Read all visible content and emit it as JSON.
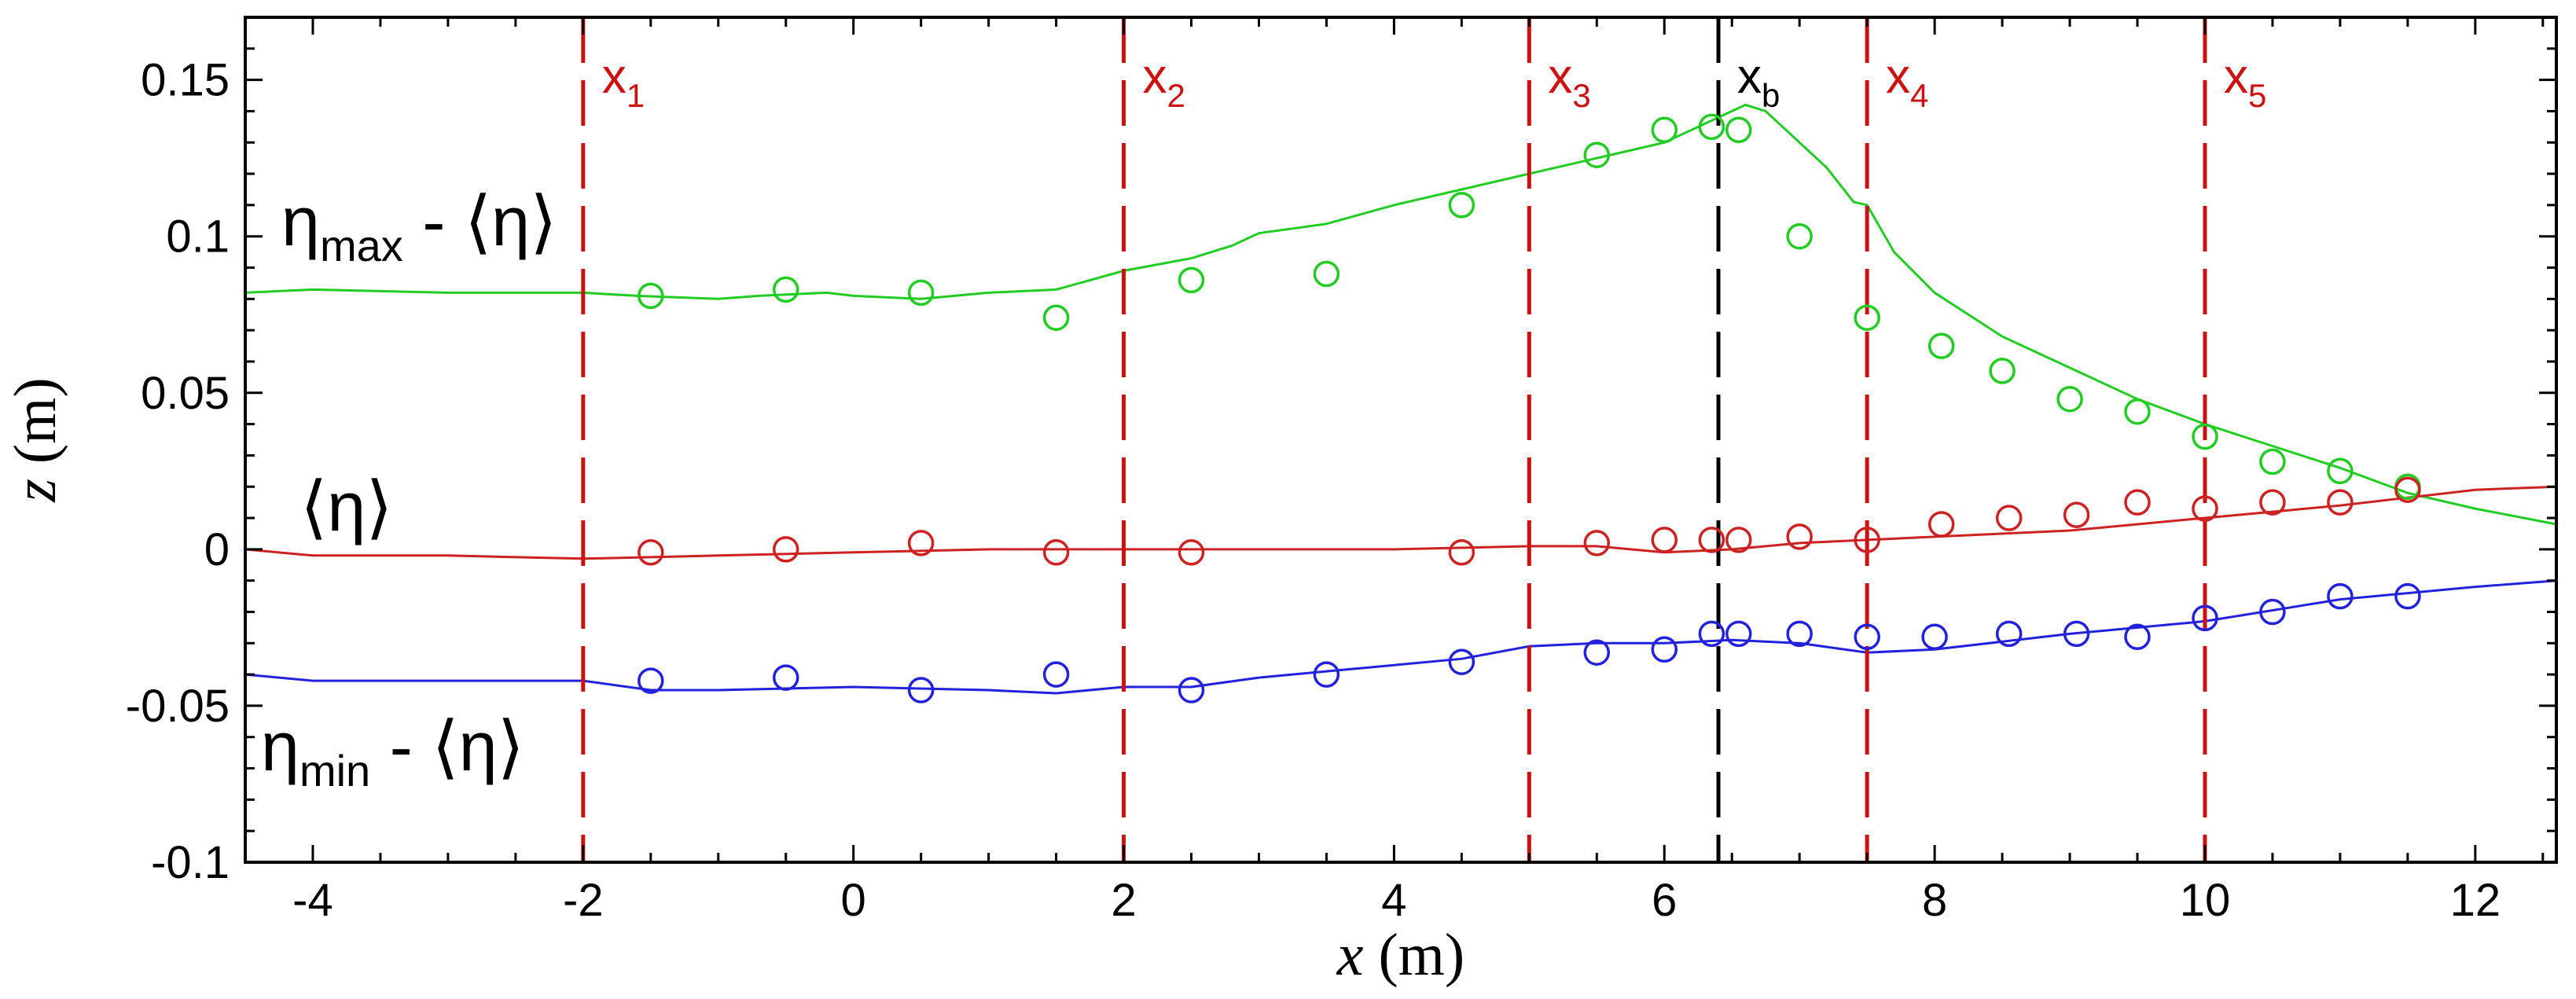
{
  "chart_data": {
    "type": "line",
    "xlabel": "x (m)",
    "ylabel": "z (m)",
    "xlim": [
      -4.5,
      12.6
    ],
    "ylim": [
      -0.1,
      0.17
    ],
    "x_ticks": [
      -4,
      -2,
      0,
      2,
      4,
      6,
      8,
      10,
      12
    ],
    "x_tick_labels": [
      "-4",
      "-2",
      "0",
      "2",
      "4",
      "6",
      "8",
      "10",
      "12"
    ],
    "y_ticks": [
      -0.1,
      -0.05,
      0,
      0.05,
      0.1,
      0.15
    ],
    "y_tick_labels": [
      "-0.1",
      "-0.05",
      "0",
      "0.05",
      "0.1",
      "0.15"
    ],
    "grid": false,
    "legend": "none",
    "series": [
      {
        "name": "ηmax - ⟨η⟩",
        "label_main": "η",
        "label_sub": "max",
        "label_rest": " - ⟨η⟩",
        "color": "#22cc22",
        "line": [
          [
            -4.5,
            0.082
          ],
          [
            -4,
            0.083
          ],
          [
            -3,
            0.082
          ],
          [
            -2,
            0.082
          ],
          [
            -1.6,
            0.081
          ],
          [
            -1,
            0.08
          ],
          [
            -0.7,
            0.081
          ],
          [
            -0.2,
            0.082
          ],
          [
            0,
            0.081
          ],
          [
            0.5,
            0.08
          ],
          [
            1,
            0.082
          ],
          [
            1.5,
            0.083
          ],
          [
            2,
            0.089
          ],
          [
            2.5,
            0.093
          ],
          [
            2.8,
            0.097
          ],
          [
            3,
            0.101
          ],
          [
            3.5,
            0.104
          ],
          [
            4,
            0.11
          ],
          [
            4.5,
            0.115
          ],
          [
            5,
            0.12
          ],
          [
            5.5,
            0.125
          ],
          [
            6,
            0.13
          ],
          [
            6.3,
            0.136
          ],
          [
            6.5,
            0.14
          ],
          [
            6.6,
            0.142
          ],
          [
            6.75,
            0.14
          ],
          [
            7,
            0.13
          ],
          [
            7.2,
            0.122
          ],
          [
            7.4,
            0.111
          ],
          [
            7.5,
            0.11
          ],
          [
            7.7,
            0.095
          ],
          [
            8,
            0.082
          ],
          [
            8.5,
            0.068
          ],
          [
            9,
            0.058
          ],
          [
            9.5,
            0.048
          ],
          [
            10,
            0.04
          ],
          [
            10.5,
            0.033
          ],
          [
            11,
            0.026
          ],
          [
            11.5,
            0.018
          ],
          [
            12,
            0.013
          ],
          [
            12.6,
            0.008
          ]
        ],
        "points": [
          [
            -1.5,
            0.081
          ],
          [
            -0.5,
            0.083
          ],
          [
            0.5,
            0.082
          ],
          [
            1.5,
            0.074
          ],
          [
            2.5,
            0.086
          ],
          [
            3.5,
            0.088
          ],
          [
            4.5,
            0.11
          ],
          [
            5.5,
            0.126
          ],
          [
            6,
            0.134
          ],
          [
            6.35,
            0.135
          ],
          [
            6.55,
            0.134
          ],
          [
            7,
            0.1
          ],
          [
            7.5,
            0.074
          ],
          [
            8.05,
            0.065
          ],
          [
            8.5,
            0.057
          ],
          [
            9,
            0.048
          ],
          [
            9.5,
            0.044
          ],
          [
            10,
            0.036
          ],
          [
            10.5,
            0.028
          ],
          [
            11,
            0.025
          ],
          [
            11.5,
            0.02
          ]
        ]
      },
      {
        "name": "⟨η⟩",
        "label_main": "⟨η⟩",
        "label_sub": "",
        "label_rest": "",
        "color": "#cc2222",
        "line": [
          [
            -4.5,
            0.0
          ],
          [
            -4,
            -0.002
          ],
          [
            -3,
            -0.002
          ],
          [
            -2,
            -0.003
          ],
          [
            -1,
            -0.002
          ],
          [
            0,
            -0.001
          ],
          [
            1,
            0.0
          ],
          [
            2,
            0.0
          ],
          [
            3,
            0.0
          ],
          [
            4,
            0.0
          ],
          [
            5,
            0.001
          ],
          [
            5.5,
            0.001
          ],
          [
            6,
            -0.001
          ],
          [
            6.5,
            0.0
          ],
          [
            7,
            0.002
          ],
          [
            7.5,
            0.003
          ],
          [
            8,
            0.004
          ],
          [
            9,
            0.006
          ],
          [
            10,
            0.01
          ],
          [
            10.5,
            0.012
          ],
          [
            11,
            0.014
          ],
          [
            12,
            0.019
          ],
          [
            12.6,
            0.02
          ]
        ],
        "points": [
          [
            -1.5,
            -0.001
          ],
          [
            -0.5,
            0.0
          ],
          [
            0.5,
            0.002
          ],
          [
            1.5,
            -0.001
          ],
          [
            2.5,
            -0.001
          ],
          [
            4.5,
            -0.001
          ],
          [
            5.5,
            0.002
          ],
          [
            6,
            0.003
          ],
          [
            6.35,
            0.003
          ],
          [
            6.55,
            0.003
          ],
          [
            7,
            0.004
          ],
          [
            7.5,
            0.003
          ],
          [
            8.05,
            0.008
          ],
          [
            8.55,
            0.01
          ],
          [
            9.05,
            0.011
          ],
          [
            9.5,
            0.015
          ],
          [
            10,
            0.013
          ],
          [
            10.5,
            0.015
          ],
          [
            11,
            0.015
          ],
          [
            11.5,
            0.019
          ]
        ]
      },
      {
        "name": "ηmin - ⟨η⟩",
        "label_main": "η",
        "label_sub": "min",
        "label_rest": " - ⟨η⟩",
        "color": "#2222dd",
        "line": [
          [
            -4.5,
            -0.04
          ],
          [
            -4,
            -0.042
          ],
          [
            -3,
            -0.042
          ],
          [
            -2,
            -0.042
          ],
          [
            -1.5,
            -0.045
          ],
          [
            -1,
            -0.045
          ],
          [
            0,
            -0.044
          ],
          [
            1,
            -0.045
          ],
          [
            1.5,
            -0.046
          ],
          [
            2,
            -0.044
          ],
          [
            2.5,
            -0.044
          ],
          [
            3,
            -0.041
          ],
          [
            3.5,
            -0.039
          ],
          [
            4,
            -0.037
          ],
          [
            4.5,
            -0.035
          ],
          [
            5,
            -0.031
          ],
          [
            5.5,
            -0.03
          ],
          [
            6,
            -0.03
          ],
          [
            6.5,
            -0.029
          ],
          [
            7,
            -0.03
          ],
          [
            7.5,
            -0.033
          ],
          [
            8,
            -0.032
          ],
          [
            9,
            -0.027
          ],
          [
            10,
            -0.023
          ],
          [
            11,
            -0.016
          ],
          [
            12,
            -0.012
          ],
          [
            12.6,
            -0.01
          ]
        ],
        "points": [
          [
            -1.5,
            -0.042
          ],
          [
            -0.5,
            -0.041
          ],
          [
            0.5,
            -0.045
          ],
          [
            1.5,
            -0.04
          ],
          [
            2.5,
            -0.045
          ],
          [
            3.5,
            -0.04
          ],
          [
            4.5,
            -0.036
          ],
          [
            5.5,
            -0.033
          ],
          [
            6,
            -0.032
          ],
          [
            6.35,
            -0.027
          ],
          [
            6.55,
            -0.027
          ],
          [
            7,
            -0.027
          ],
          [
            7.5,
            -0.028
          ],
          [
            8,
            -0.028
          ],
          [
            8.55,
            -0.027
          ],
          [
            9.05,
            -0.027
          ],
          [
            9.5,
            -0.028
          ],
          [
            10,
            -0.022
          ],
          [
            10.5,
            -0.02
          ],
          [
            11,
            -0.015
          ],
          [
            11.5,
            -0.015
          ]
        ]
      }
    ],
    "vertical_markers": [
      {
        "x": -2,
        "label": "x",
        "sub": "1",
        "color": "#cc1111"
      },
      {
        "x": 2,
        "label": "x",
        "sub": "2",
        "color": "#cc1111"
      },
      {
        "x": 5,
        "label": "x",
        "sub": "3",
        "color": "#cc1111"
      },
      {
        "x": 6.4,
        "label": "x",
        "sub": "b",
        "color": "#000000"
      },
      {
        "x": 7.5,
        "label": "x",
        "sub": "4",
        "color": "#cc1111"
      },
      {
        "x": 10,
        "label": "x",
        "sub": "5",
        "color": "#cc1111"
      }
    ]
  }
}
